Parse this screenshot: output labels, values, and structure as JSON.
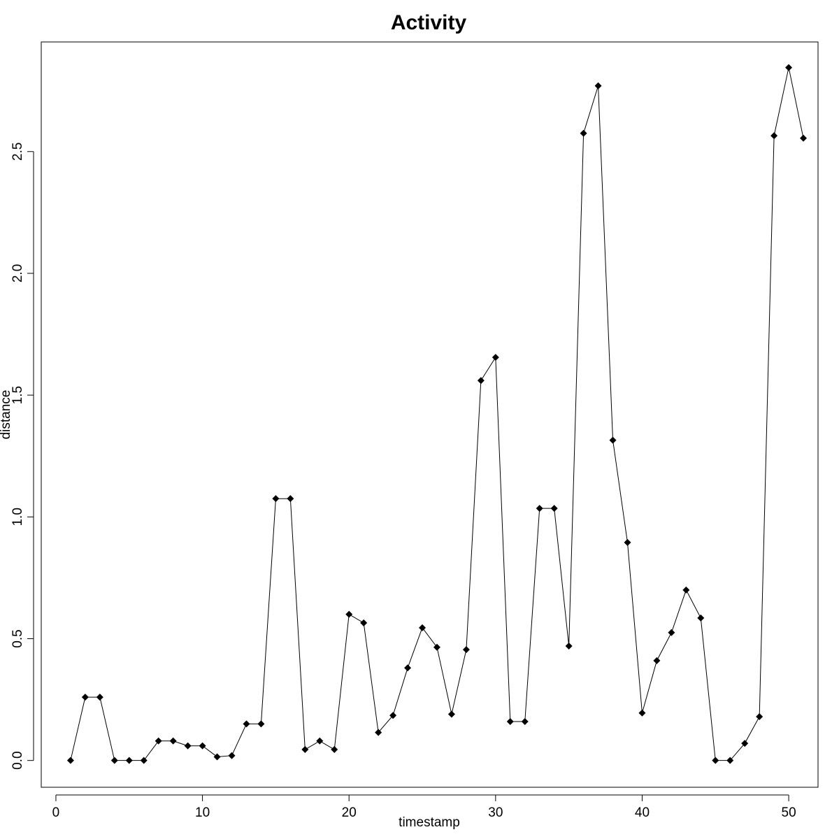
{
  "chart_data": {
    "type": "line",
    "title": "Activity",
    "xlabel": "timestamp",
    "ylabel": "distance",
    "xlim": [
      -1,
      52
    ],
    "ylim": [
      -0.11,
      2.95
    ],
    "xticks": [
      0,
      10,
      20,
      30,
      40,
      50
    ],
    "xtick_labels": [
      "0",
      "10",
      "20",
      "30",
      "40",
      "50"
    ],
    "yticks": [
      0.0,
      0.5,
      1.0,
      1.5,
      2.0,
      2.5
    ],
    "ytick_labels": [
      "0.0",
      "0.5",
      "1.0",
      "1.5",
      "2.0",
      "2.5"
    ],
    "grid": false,
    "marker": "diamond",
    "x": [
      1,
      2,
      3,
      4,
      5,
      6,
      7,
      8,
      9,
      10,
      11,
      12,
      13,
      14,
      15,
      16,
      17,
      18,
      19,
      20,
      21,
      22,
      23,
      24,
      25,
      26,
      27,
      28,
      29,
      30,
      31,
      32,
      33,
      34,
      35,
      36,
      37,
      38,
      39,
      40,
      41,
      42,
      43,
      44,
      45,
      46,
      47,
      48,
      49,
      50,
      51
    ],
    "values": [
      0.0,
      0.26,
      0.26,
      0.0,
      0.0,
      0.0,
      0.08,
      0.08,
      0.06,
      0.06,
      0.015,
      0.02,
      0.15,
      0.15,
      1.075,
      1.075,
      0.045,
      0.08,
      0.045,
      0.6,
      0.565,
      0.115,
      0.185,
      0.38,
      0.545,
      0.465,
      0.19,
      0.455,
      1.56,
      1.655,
      0.16,
      0.16,
      1.035,
      1.035,
      0.47,
      2.575,
      2.77,
      1.315,
      0.895,
      0.195,
      0.41,
      0.525,
      0.7,
      0.585,
      0.0,
      0.0,
      0.07,
      0.18,
      2.565,
      2.845,
      2.555
    ]
  }
}
